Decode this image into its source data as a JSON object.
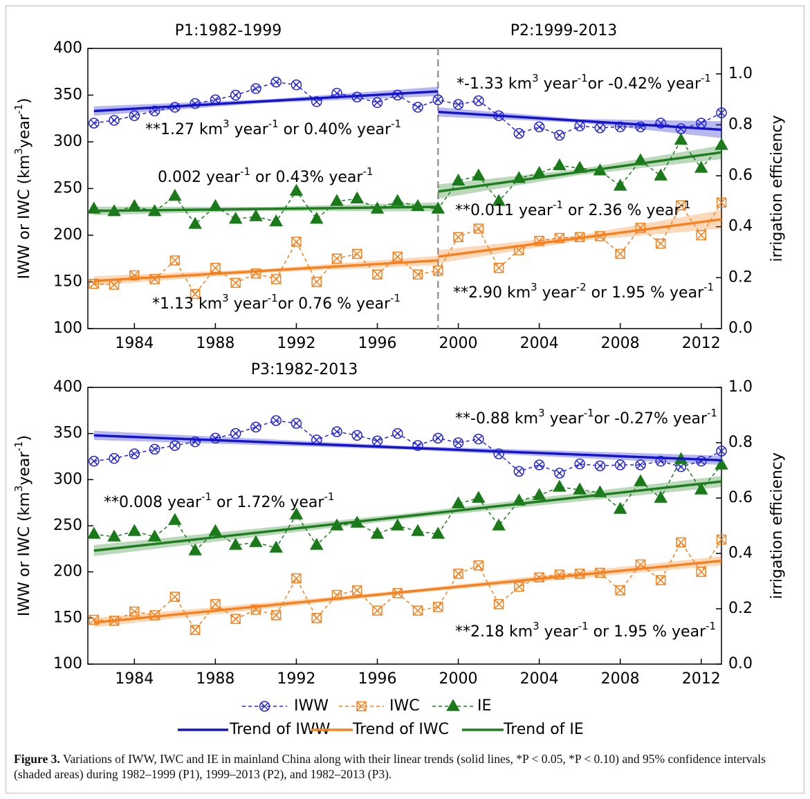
{
  "chart_data": {
    "type": "line",
    "x": [
      1982,
      1983,
      1984,
      1985,
      1986,
      1987,
      1988,
      1989,
      1990,
      1991,
      1992,
      1993,
      1994,
      1995,
      1996,
      1997,
      1998,
      1999,
      2000,
      2001,
      2002,
      2003,
      2004,
      2005,
      2006,
      2007,
      2008,
      2009,
      2010,
      2011,
      2012,
      2013
    ],
    "xlim": [
      1981.7,
      2013
    ],
    "xticks": [
      1984,
      1988,
      1992,
      1996,
      2000,
      2004,
      2008,
      2012
    ],
    "series": [
      {
        "name": "IWW",
        "color": "#2424d8",
        "marker": "circle-x",
        "values": [
          320,
          323,
          328,
          333,
          337,
          341,
          345,
          350,
          357,
          364,
          361,
          343,
          352,
          348,
          342,
          350,
          337,
          345,
          340,
          344,
          328,
          309,
          316,
          307,
          317,
          315,
          316,
          316,
          320,
          314,
          320,
          331
        ]
      },
      {
        "name": "IWC",
        "color": "#f5821f",
        "marker": "square-x",
        "values": [
          148,
          147,
          157,
          153,
          173,
          137,
          165,
          149,
          159,
          153,
          193,
          150,
          175,
          180,
          158,
          177,
          158,
          162,
          198,
          207,
          165,
          184,
          194,
          197,
          198,
          199,
          180,
          208,
          191,
          232,
          200,
          235
        ]
      },
      {
        "name": "IE",
        "color": "#1a7a1a",
        "marker": "triangle",
        "axis": "y2",
        "values": [
          0.47,
          0.46,
          0.48,
          0.46,
          0.52,
          0.41,
          0.48,
          0.43,
          0.44,
          0.42,
          0.54,
          0.43,
          0.5,
          0.51,
          0.47,
          0.5,
          0.48,
          0.47,
          0.58,
          0.6,
          0.5,
          0.59,
          0.61,
          0.64,
          0.63,
          0.62,
          0.56,
          0.66,
          0.6,
          0.74,
          0.63,
          0.72
        ]
      }
    ],
    "trends": [
      {
        "name": "Trend of IWW",
        "color": "#1414cc"
      },
      {
        "name": "Trend of IWC",
        "color": "#f7811e"
      },
      {
        "name": "Trend of IE",
        "color": "#1e7d1e",
        "axis": "y2"
      }
    ],
    "panels": [
      {
        "titles": [
          "P1:1982-1999",
          "P2:1999-2013"
        ],
        "ylim": [
          100,
          400
        ],
        "yticks": [
          100,
          150,
          200,
          250,
          300,
          350,
          400
        ],
        "y2lim": [
          0,
          1.1
        ],
        "y2ticks": [
          {
            "value": 0,
            "label": "0.0"
          },
          0.2,
          0.4,
          0.6,
          0.8,
          {
            "value": 1,
            "label": "1.0"
          }
        ],
        "ylabel": [
          {
            "text": "IWW or IWC (km"
          },
          {
            "text": "3",
            "sup": true
          },
          {
            "text": "year"
          },
          {
            "text": "-1",
            "sup": true
          },
          {
            "text": ")"
          }
        ],
        "y2label": "irrigation efficiency",
        "divider": 1999,
        "trends": [
          [
            {
              "x": [
                1982,
                1990.5,
                1999
              ],
              "values": [
                333,
                343.5,
                354
              ],
              "lower": [
                328,
                341.5,
                349
              ],
              "upper": [
                338,
                345.5,
                359
              ]
            },
            {
              "x": [
                1999,
                2006,
                2013
              ],
              "values": [
                332,
                322.5,
                313
              ],
              "lower": [
                327,
                320.5,
                304
              ],
              "upper": [
                337,
                324.5,
                322
              ]
            }
          ],
          [
            {
              "x": [
                1982,
                1990.5,
                1999
              ],
              "values": [
                151,
                162,
                173
              ],
              "lower": [
                146,
                160,
                168
              ],
              "upper": [
                156,
                164,
                178
              ]
            },
            {
              "x": [
                1999,
                2006,
                2013
              ],
              "values": [
                177,
                197,
                217
              ],
              "lower": [
                170,
                194,
                207
              ],
              "upper": [
                184,
                200,
                227
              ]
            }
          ],
          [
            {
              "x": [
                1982,
                1990.5,
                1999
              ],
              "values": [
                0.462,
                0.47,
                0.478
              ],
              "lower": [
                0.445,
                0.462,
                0.46
              ],
              "upper": [
                0.479,
                0.478,
                0.496
              ]
            },
            {
              "x": [
                1999,
                2006,
                2013
              ],
              "values": [
                0.538,
                0.615,
                0.692
              ],
              "lower": [
                0.51,
                0.603,
                0.665
              ],
              "upper": [
                0.566,
                0.627,
                0.719
              ]
            }
          ]
        ],
        "annotations": [
          [
            {
              "text": "**1.27 km"
            },
            {
              "text": "3",
              "sup": true
            },
            {
              "text": " year"
            },
            {
              "text": "-1",
              "sup": true
            },
            {
              "text": " or 0.40% year"
            },
            {
              "text": "-1",
              "sup": true
            }
          ],
          [
            {
              "text": "0.002 year"
            },
            {
              "text": "-1",
              "sup": true
            },
            {
              "text": " or 0.43% year"
            },
            {
              "text": "-1",
              "sup": true
            }
          ],
          [
            {
              "text": "*1.13 km"
            },
            {
              "text": "3",
              "sup": true
            },
            {
              "text": " year"
            },
            {
              "text": "-1",
              "sup": true
            },
            {
              "text": "or 0.76 % year"
            },
            {
              "text": "-1",
              "sup": true
            }
          ],
          [
            {
              "text": "*-1.33 km"
            },
            {
              "text": "3",
              "sup": true
            },
            {
              "text": " year"
            },
            {
              "text": "-1",
              "sup": true
            },
            {
              "text": "or -0.42% year"
            },
            {
              "text": "-1",
              "sup": true
            }
          ],
          [
            {
              "text": "**0.011 year"
            },
            {
              "text": "-1",
              "sup": true
            },
            {
              "text": " or 2.36 % year"
            },
            {
              "text": "-1",
              "sup": true
            }
          ],
          [
            {
              "text": "**2.90 km"
            },
            {
              "text": "3",
              "sup": true
            },
            {
              "text": " year"
            },
            {
              "text": "-2",
              "sup": true
            },
            {
              "text": " or 1.95 % year"
            },
            {
              "text": "-1",
              "sup": true
            }
          ]
        ]
      },
      {
        "titles": [
          "P3:1982-2013"
        ],
        "ylim": [
          100,
          400
        ],
        "yticks": [
          100,
          150,
          200,
          250,
          300,
          350,
          400
        ],
        "y2lim": [
          0,
          1
        ],
        "y2ticks": [
          {
            "value": 0,
            "label": "0.0"
          },
          0.2,
          0.4,
          0.6,
          0.8,
          {
            "value": 1,
            "label": "1.0"
          }
        ],
        "ylabel": [
          {
            "text": "IWW or IWC  (km"
          },
          {
            "text": "3",
            "sup": true
          },
          {
            "text": "year"
          },
          {
            "text": "-1",
            "sup": true
          },
          {
            "text": ")"
          }
        ],
        "y2label": "irrigation efficiency",
        "trends": [
          [
            {
              "x": [
                1982,
                1997.5,
                2013
              ],
              "values": [
                348,
                334.5,
                321
              ],
              "lower": [
                343,
                332.5,
                316
              ],
              "upper": [
                353,
                336.5,
                326
              ]
            }
          ],
          [
            {
              "x": [
                1982,
                1997.5,
                2013
              ],
              "values": [
                145,
                178.5,
                212
              ],
              "lower": [
                140,
                176.5,
                207
              ],
              "upper": [
                150,
                180.5,
                217
              ]
            }
          ],
          [
            {
              "x": [
                1982,
                1997.5,
                2013
              ],
              "values": [
                0.41,
                0.535,
                0.66
              ],
              "lower": [
                0.39,
                0.525,
                0.64
              ],
              "upper": [
                0.43,
                0.545,
                0.68
              ]
            }
          ]
        ],
        "annotations": [
          [
            {
              "text": "**-0.88 km"
            },
            {
              "text": "3",
              "sup": true
            },
            {
              "text": " year"
            },
            {
              "text": "-1",
              "sup": true
            },
            {
              "text": "or -0.27% year"
            },
            {
              "text": "-1",
              "sup": true
            }
          ],
          [
            {
              "text": "**0.008 year"
            },
            {
              "text": "-1",
              "sup": true
            },
            {
              "text": " or 1.72% year"
            },
            {
              "text": "-1",
              "sup": true
            }
          ],
          [
            {
              "text": "**2.18 km"
            },
            {
              "text": "3",
              "sup": true
            },
            {
              "text": " year"
            },
            {
              "text": "-1",
              "sup": true
            },
            {
              "text": " or 1.95 % year"
            },
            {
              "text": "-1",
              "sup": true
            }
          ]
        ]
      }
    ],
    "caption": {
      "label": "Figure 3.",
      "text": " Variations of IWW, IWC and IE in mainland China along with their linear trends (solid lines, *P < 0.05, *P < 0.10) and 95% confidence intervals (shaded areas) during 1982–1999 (P1), 1999–2013 (P2), and 1982–2013 (P3)."
    }
  }
}
